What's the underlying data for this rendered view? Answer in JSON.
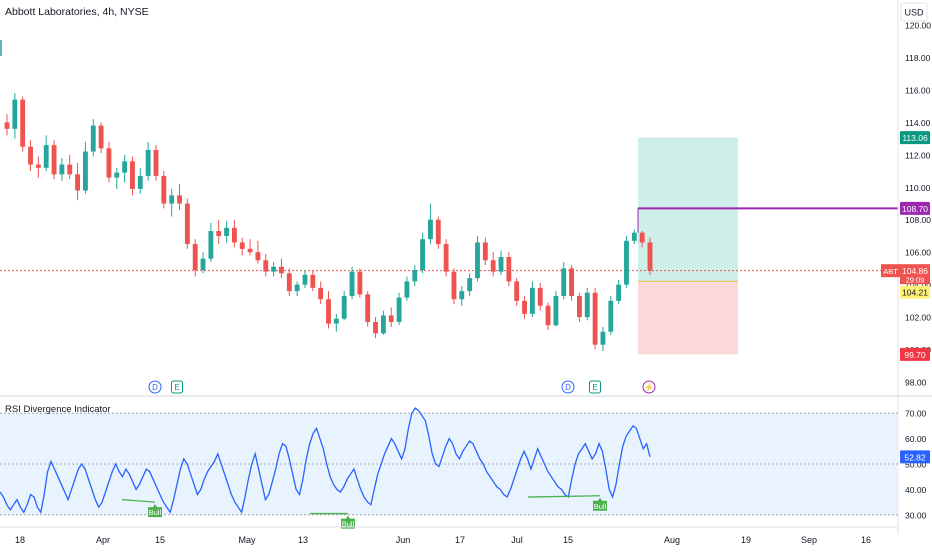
{
  "header": {
    "symbol_title": "Abbott Laboratories, 4h, NYSE",
    "currency": "USD"
  },
  "price_scale": {
    "ticks": [
      "120.00",
      "118.00",
      "116.00",
      "114.00",
      "112.00",
      "110.00",
      "108.00",
      "106.00",
      "104.00",
      "102.00",
      "100.00",
      "98.00"
    ]
  },
  "price_tags": {
    "target": "113.06",
    "entry_line": "108.70",
    "last_symbol": "ABT",
    "last_price": "104.86",
    "countdown": "29:09",
    "entry": "104.21",
    "stop": "99.70"
  },
  "colors": {
    "up": "#26a69a",
    "down": "#ef5350",
    "rsi_line": "#2962ff",
    "divergence": "#4caf50",
    "target_zone": "#cdeee9",
    "stop_zone": "#fbd9d8",
    "entry_line": "#9c27b0",
    "rsi_band": "#e8f3fd"
  },
  "events": [
    {
      "label": "D",
      "type": "dividend-icon"
    },
    {
      "label": "E",
      "type": "earnings-icon"
    },
    {
      "label": "D",
      "type": "dividend-icon"
    },
    {
      "label": "E",
      "type": "earnings-icon"
    },
    {
      "label": "⚡",
      "type": "split-icon"
    }
  ],
  "rsi_panel": {
    "title": "RSI Divergence Indicator",
    "ticks": [
      "70.00",
      "60.00",
      "50.00",
      "40.00",
      "30.00"
    ],
    "current": "52.82",
    "bull_labels": [
      "Bull",
      "Bull",
      "Bull"
    ]
  },
  "time_axis": {
    "labels": [
      "18",
      "Apr",
      "15",
      "May",
      "13",
      "Jun",
      "17",
      "Jul",
      "15",
      "Aug",
      "19",
      "Sep",
      "16"
    ]
  },
  "chart_data": {
    "type": "candlestick",
    "title": "Abbott Laboratories, 4h, NYSE",
    "y_unit": "USD",
    "ylim": [
      97.5,
      121.0
    ],
    "candles_ohlc": [
      [
        114.0,
        114.5,
        113.2,
        113.6
      ],
      [
        113.6,
        115.8,
        113.0,
        115.4
      ],
      [
        115.4,
        115.6,
        112.2,
        112.5
      ],
      [
        112.5,
        112.9,
        111.0,
        111.4
      ],
      [
        111.4,
        111.9,
        110.6,
        111.2
      ],
      [
        111.2,
        113.2,
        111.0,
        112.6
      ],
      [
        112.6,
        112.9,
        110.5,
        110.8
      ],
      [
        110.8,
        111.8,
        110.4,
        111.4
      ],
      [
        111.4,
        112.0,
        110.5,
        110.8
      ],
      [
        110.8,
        111.5,
        109.2,
        109.8
      ],
      [
        109.8,
        112.8,
        109.6,
        112.2
      ],
      [
        112.2,
        114.2,
        111.9,
        113.8
      ],
      [
        113.8,
        114.0,
        112.1,
        112.4
      ],
      [
        112.4,
        112.8,
        110.3,
        110.6
      ],
      [
        110.6,
        111.2,
        109.9,
        110.9
      ],
      [
        110.9,
        112.0,
        110.3,
        111.6
      ],
      [
        111.6,
        111.9,
        109.5,
        109.9
      ],
      [
        109.9,
        111.2,
        109.6,
        110.7
      ],
      [
        110.7,
        112.8,
        110.4,
        112.3
      ],
      [
        112.3,
        112.6,
        110.4,
        110.7
      ],
      [
        110.7,
        111.0,
        108.7,
        109.0
      ],
      [
        109.0,
        109.9,
        108.2,
        109.5
      ],
      [
        109.5,
        110.2,
        108.6,
        109.0
      ],
      [
        109.0,
        109.3,
        106.2,
        106.5
      ],
      [
        106.5,
        106.8,
        104.5,
        104.9
      ],
      [
        104.9,
        106.0,
        104.7,
        105.6
      ],
      [
        105.6,
        107.8,
        105.4,
        107.3
      ],
      [
        107.3,
        108.0,
        106.5,
        107.0
      ],
      [
        107.0,
        107.9,
        106.6,
        107.5
      ],
      [
        107.5,
        108.0,
        106.3,
        106.6
      ],
      [
        106.6,
        106.9,
        105.8,
        106.2
      ],
      [
        106.2,
        106.8,
        105.8,
        106.0
      ],
      [
        106.0,
        106.7,
        105.3,
        105.5
      ],
      [
        105.5,
        105.9,
        104.5,
        104.8
      ],
      [
        104.8,
        105.4,
        104.5,
        105.1
      ],
      [
        105.1,
        105.6,
        104.4,
        104.7
      ],
      [
        104.7,
        105.0,
        103.3,
        103.6
      ],
      [
        103.6,
        104.2,
        103.3,
        104.0
      ],
      [
        104.0,
        104.9,
        103.8,
        104.6
      ],
      [
        104.6,
        104.9,
        103.6,
        103.8
      ],
      [
        103.8,
        104.2,
        102.8,
        103.1
      ],
      [
        103.1,
        103.6,
        101.3,
        101.6
      ],
      [
        101.6,
        102.2,
        101.1,
        101.9
      ],
      [
        101.9,
        103.6,
        101.8,
        103.3
      ],
      [
        103.3,
        105.1,
        103.1,
        104.8
      ],
      [
        104.8,
        105.0,
        103.2,
        103.4
      ],
      [
        103.4,
        103.6,
        101.4,
        101.7
      ],
      [
        101.7,
        102.0,
        100.7,
        101.0
      ],
      [
        101.0,
        102.4,
        100.9,
        102.1
      ],
      [
        102.1,
        102.6,
        101.4,
        101.7
      ],
      [
        101.7,
        103.5,
        101.5,
        103.2
      ],
      [
        103.2,
        104.5,
        103.0,
        104.2
      ],
      [
        104.2,
        105.2,
        103.9,
        104.9
      ],
      [
        104.9,
        107.2,
        104.7,
        106.8
      ],
      [
        106.8,
        109.0,
        106.5,
        108.0
      ],
      [
        108.0,
        108.2,
        106.2,
        106.5
      ],
      [
        106.5,
        106.8,
        104.5,
        104.8
      ],
      [
        104.8,
        105.0,
        102.8,
        103.1
      ],
      [
        103.1,
        103.9,
        102.7,
        103.6
      ],
      [
        103.6,
        104.7,
        103.3,
        104.4
      ],
      [
        104.4,
        107.0,
        104.2,
        106.6
      ],
      [
        106.6,
        106.9,
        105.2,
        105.5
      ],
      [
        105.5,
        106.0,
        104.5,
        104.8
      ],
      [
        104.8,
        106.1,
        104.6,
        105.7
      ],
      [
        105.7,
        106.0,
        103.9,
        104.2
      ],
      [
        104.2,
        104.4,
        102.7,
        103.0
      ],
      [
        103.0,
        103.3,
        101.9,
        102.2
      ],
      [
        102.2,
        104.2,
        102.0,
        103.8
      ],
      [
        103.8,
        104.1,
        102.4,
        102.7
      ],
      [
        102.7,
        102.9,
        101.2,
        101.5
      ],
      [
        101.5,
        103.6,
        101.4,
        103.3
      ],
      [
        103.3,
        105.4,
        103.1,
        105.0
      ],
      [
        105.0,
        105.2,
        103.0,
        103.3
      ],
      [
        103.3,
        103.5,
        101.7,
        102.0
      ],
      [
        102.0,
        103.8,
        101.8,
        103.5
      ],
      [
        103.5,
        103.8,
        100.0,
        100.3
      ],
      [
        100.3,
        101.4,
        99.9,
        101.1
      ],
      [
        101.1,
        103.3,
        100.9,
        103.0
      ],
      [
        103.0,
        104.3,
        102.8,
        104.0
      ],
      [
        104.0,
        107.0,
        103.8,
        106.7
      ],
      [
        106.7,
        107.4,
        106.5,
        107.2
      ],
      [
        107.2,
        107.3,
        106.3,
        106.6
      ],
      [
        106.6,
        106.9,
        104.6,
        104.86
      ]
    ],
    "trade_setup": {
      "target": 113.06,
      "level_line": 108.7,
      "entry": 104.21,
      "stop": 99.7,
      "last": 104.86
    },
    "rsi_ylim": [
      26,
      74
    ],
    "rsi_levels": [
      70,
      50,
      30
    ],
    "rsi_values": [
      39,
      37,
      34,
      32,
      34,
      36,
      33,
      31,
      34,
      38,
      37,
      33,
      31,
      38,
      47,
      51,
      48,
      45,
      42,
      39,
      36,
      40,
      44,
      48,
      50,
      48,
      44,
      40,
      36,
      33,
      35,
      39,
      43,
      47,
      50,
      47,
      45,
      48,
      46,
      43,
      40,
      42,
      45,
      48,
      47,
      44,
      41,
      38,
      35,
      33,
      31,
      36,
      42,
      48,
      52,
      50,
      46,
      42,
      38,
      40,
      44,
      47,
      49,
      51,
      54,
      50,
      46,
      42,
      38,
      35,
      33,
      31,
      37,
      44,
      50,
      54,
      48,
      42,
      36,
      38,
      43,
      48,
      54,
      58,
      57,
      52,
      46,
      40,
      38,
      44,
      52,
      58,
      62,
      64,
      60,
      56,
      50,
      45,
      42,
      40,
      39,
      41,
      44,
      46,
      48,
      44,
      40,
      37,
      35,
      34,
      40,
      46,
      50,
      54,
      57,
      60,
      58,
      55,
      52,
      56,
      64,
      70,
      72,
      71,
      69,
      67,
      61,
      54,
      50,
      49,
      53,
      57,
      60,
      58,
      54,
      52,
      55,
      57,
      59,
      58,
      55,
      52,
      50,
      47,
      45,
      43,
      41,
      40,
      38,
      37,
      40,
      44,
      48,
      52,
      55,
      52,
      48,
      52,
      56,
      53,
      50,
      47,
      45,
      43,
      41,
      40,
      38,
      37,
      44,
      50,
      54,
      56,
      58,
      55,
      52,
      54,
      58,
      55,
      48,
      40,
      37,
      42,
      50,
      57,
      61,
      63,
      65,
      64,
      60,
      56,
      58,
      52.82
    ],
    "time_labels": [
      "18",
      "Apr",
      "15",
      "May",
      "13",
      "Jun",
      "17",
      "Jul",
      "15",
      "Aug",
      "19",
      "Sep",
      "16"
    ]
  }
}
